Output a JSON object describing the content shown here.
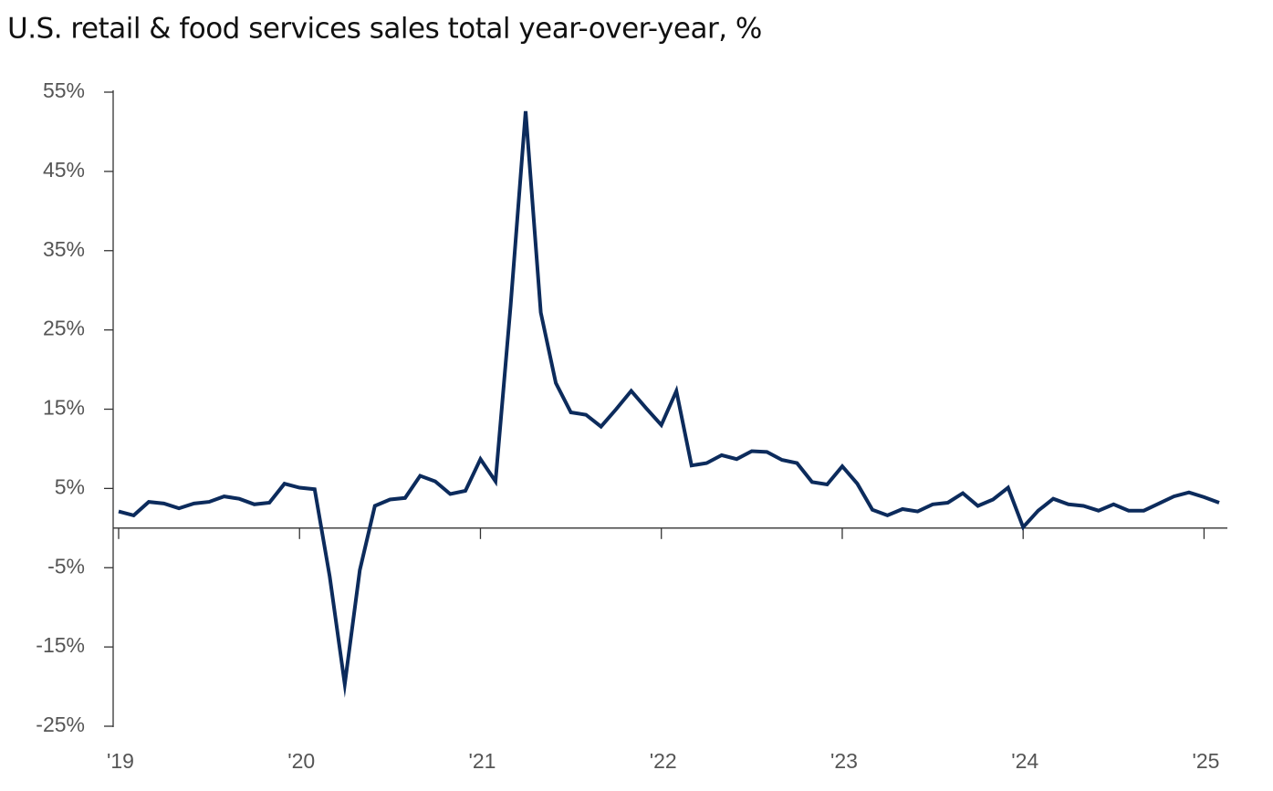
{
  "chart_data": {
    "type": "line",
    "title": "U.S. retail & food services sales total year-over-year, %",
    "categories": [
      "'19",
      null,
      null,
      null,
      null,
      null,
      null,
      null,
      null,
      null,
      null,
      null,
      "'20",
      null,
      null,
      null,
      null,
      null,
      null,
      null,
      null,
      null,
      null,
      null,
      "'21",
      null,
      null,
      null,
      null,
      null,
      null,
      null,
      null,
      null,
      null,
      null,
      "'22",
      null,
      null,
      null,
      null,
      null,
      null,
      null,
      null,
      null,
      null,
      null,
      "'23",
      null,
      null,
      null,
      null,
      null,
      null,
      null,
      null,
      null,
      null,
      null,
      "'24",
      null,
      null,
      null,
      null,
      null,
      null,
      null,
      null,
      null,
      null,
      null,
      "'25",
      null
    ],
    "values": [
      2.1,
      1.6,
      3.3,
      3.1,
      2.5,
      3.1,
      3.3,
      4.0,
      3.7,
      3.0,
      3.2,
      5.6,
      5.1,
      4.9,
      -6.1,
      -19.7,
      -5.3,
      2.8,
      3.6,
      3.8,
      6.6,
      5.9,
      4.3,
      4.7,
      8.7,
      5.9,
      28.0,
      52.6,
      27.2,
      18.3,
      14.6,
      14.3,
      12.8,
      15.0,
      17.3,
      15.1,
      13.0,
      17.3,
      7.9,
      8.2,
      9.2,
      8.7,
      9.7,
      9.6,
      8.6,
      8.2,
      5.8,
      5.5,
      7.8,
      5.6,
      2.3,
      1.6,
      2.4,
      2.1,
      3.0,
      3.2,
      4.4,
      2.8,
      3.6,
      5.1,
      0.1,
      2.2,
      3.7,
      3.0,
      2.8,
      2.2,
      3.0,
      2.2,
      2.2,
      3.1,
      4.0,
      4.5,
      3.9,
      3.2
    ],
    "color": "#0c2b5c",
    "ylim": [
      -25,
      55
    ],
    "yticks": [
      {
        "value": -25,
        "label": "-25%"
      },
      {
        "value": -15,
        "label": "-15%"
      },
      {
        "value": -5,
        "label": "-5%"
      },
      {
        "value": 5,
        "label": "5%"
      },
      {
        "value": 15,
        "label": "15%"
      },
      {
        "value": 25,
        "label": "25%"
      },
      {
        "value": 35,
        "label": "35%"
      },
      {
        "value": 45,
        "label": "45%"
      },
      {
        "value": 55,
        "label": "55%"
      }
    ],
    "grid": false
  }
}
